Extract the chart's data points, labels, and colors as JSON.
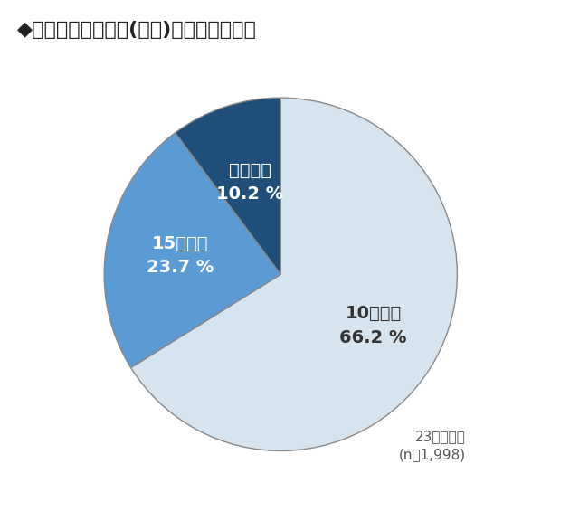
{
  "title": "◆自宅から最寄り駅(電車)までの徒歩時間",
  "slices": [
    66.2,
    23.7,
    10.2
  ],
  "labels": [
    "10分以内",
    "15分以内",
    "それ以上"
  ],
  "pct_labels": [
    "66.2 %",
    "23.7 %",
    "10.2 %"
  ],
  "colors": [
    "#d6e4f0",
    "#5b9bd5",
    "#1f4e79"
  ],
  "label_colors": [
    "#333333",
    "#ffffff",
    "#ffffff"
  ],
  "note_line1": "23区在住者",
  "note_line2": "(n＝1,998)",
  "background_color": "#ffffff",
  "title_fontsize": 16,
  "label_fontsize": 14,
  "pct_fontsize": 14,
  "note_fontsize": 11,
  "edge_color": "#888888",
  "edge_linewidth": 1.0
}
